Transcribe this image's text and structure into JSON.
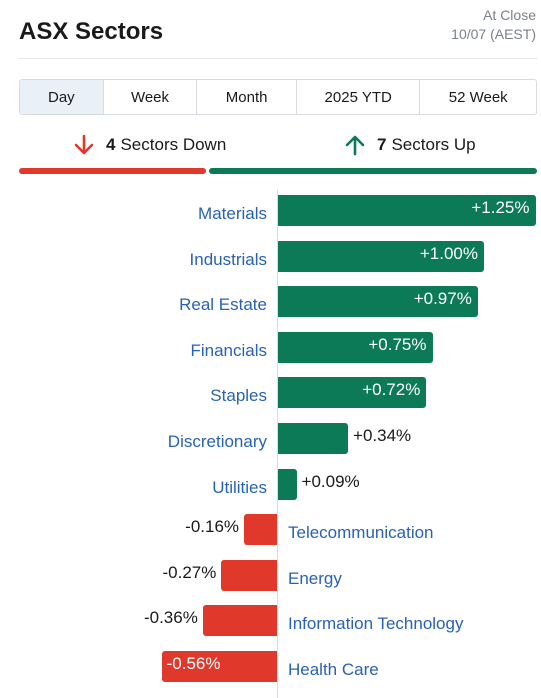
{
  "header": {
    "title": "ASX Sectors",
    "status": "At Close",
    "date": "10/07 (AEST)"
  },
  "tabs": [
    {
      "label": "Day",
      "active": true
    },
    {
      "label": "Week",
      "active": false
    },
    {
      "label": "Month",
      "active": false
    },
    {
      "label": "2025 YTD",
      "active": false
    },
    {
      "label": "52 Week",
      "active": false
    }
  ],
  "summary": {
    "down_count": "4",
    "down_text": "Sectors Down",
    "up_count": "7",
    "up_text": "Sectors Up",
    "down_share": 0.364,
    "up_share": 0.636
  },
  "colors": {
    "positive": "#0c7a56",
    "negative": "#e0382b",
    "link": "#2962b5",
    "active_tab": "#e9f0f8"
  },
  "chart_data": {
    "type": "bar",
    "orientation": "horizontal",
    "categories": [
      "Materials",
      "Industrials",
      "Real Estate",
      "Financials",
      "Staples",
      "Discretionary",
      "Utilities",
      "Telecommunication",
      "Energy",
      "Information Technology",
      "Health Care"
    ],
    "values": [
      1.25,
      1.0,
      0.97,
      0.75,
      0.72,
      0.34,
      0.09,
      -0.16,
      -0.27,
      -0.36,
      -0.56
    ],
    "labels": [
      "+1.25%",
      "+1.00%",
      "+0.97%",
      "+0.75%",
      "+0.72%",
      "+0.34%",
      "+0.09%",
      "-0.16%",
      "-0.27%",
      "-0.36%",
      "-0.56%"
    ],
    "unit": "%"
  }
}
